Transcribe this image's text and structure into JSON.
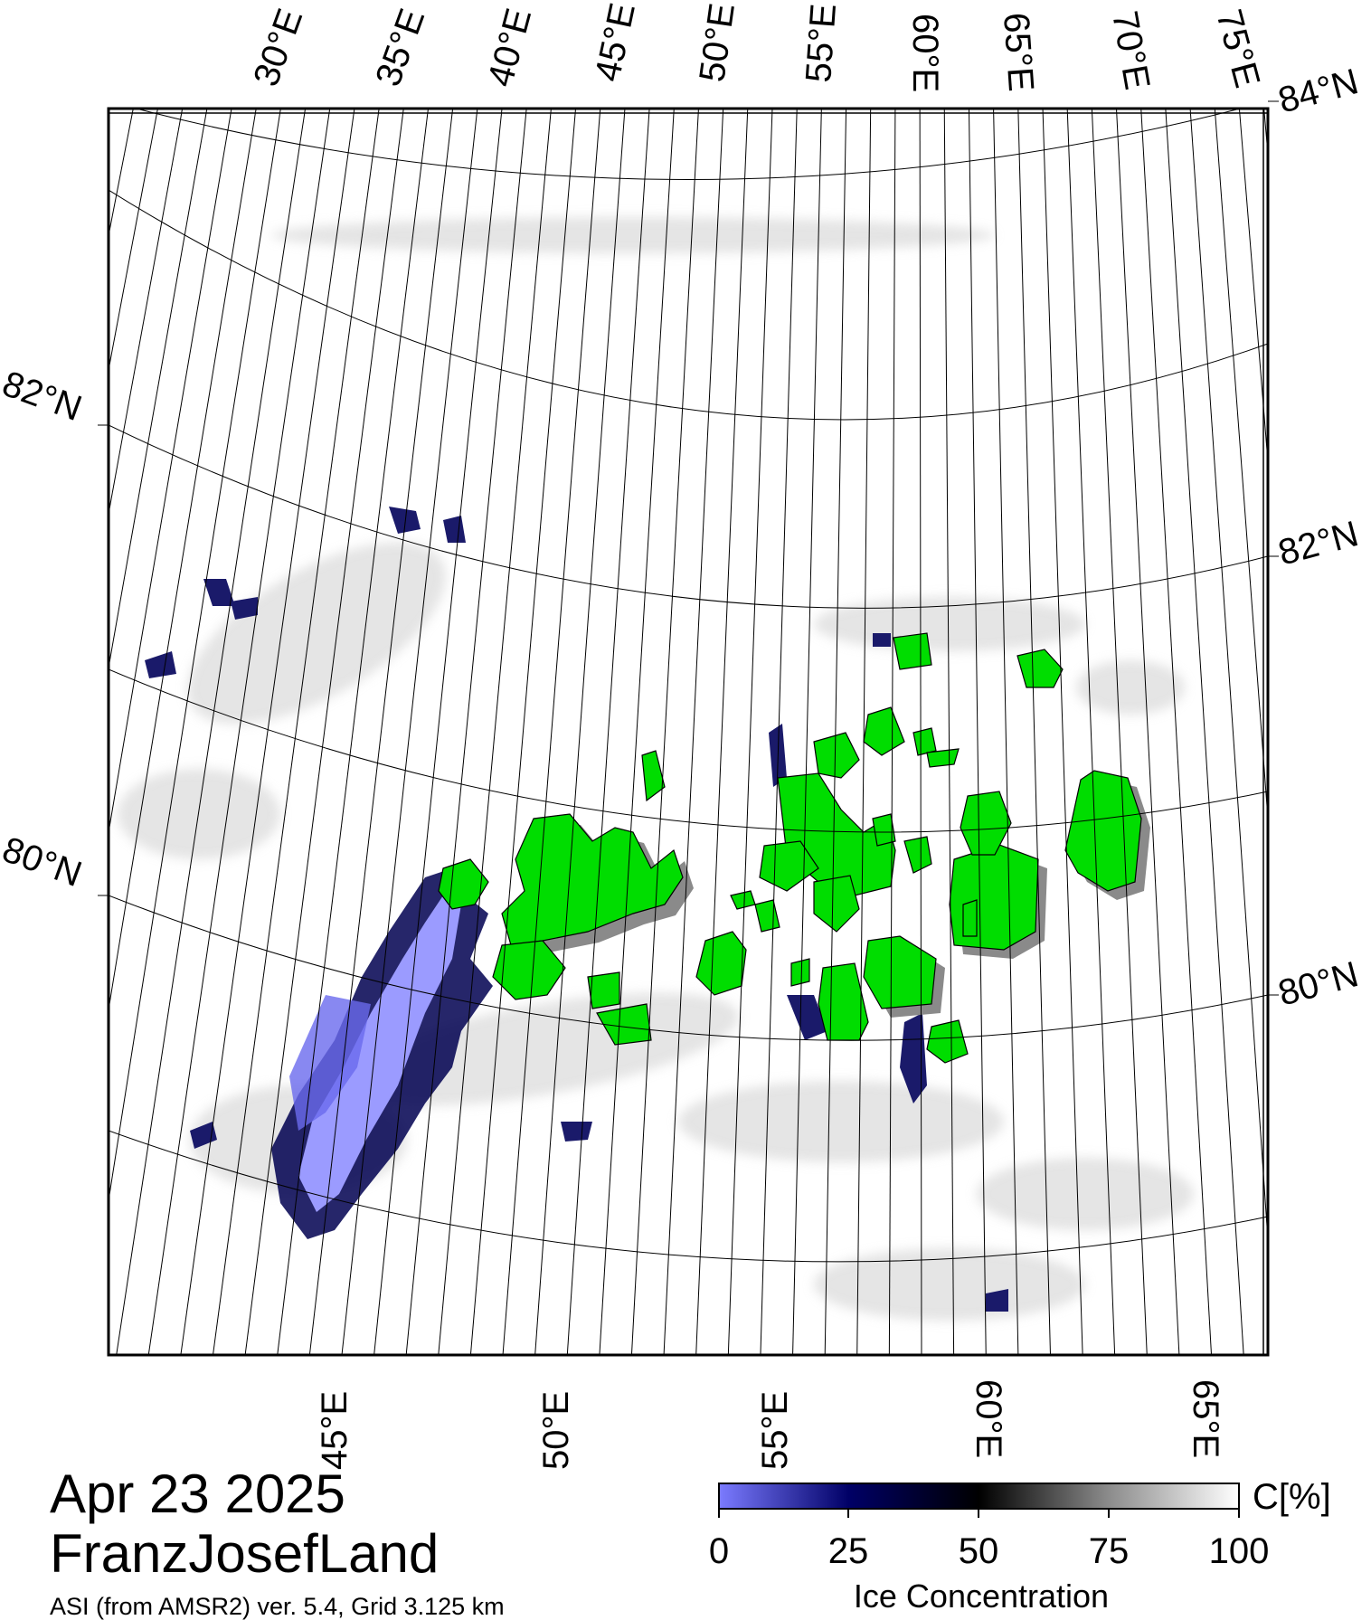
{
  "map": {
    "top_lon_labels": [
      "30°E",
      "35°E",
      "40°E",
      "45°E",
      "50°E",
      "55°E",
      "60°E",
      "65°E",
      "70°E",
      "75°E"
    ],
    "bottom_lon_labels": [
      "45°E",
      "50°E",
      "55°E",
      "60°E",
      "65°E"
    ],
    "left_lat_labels": [
      "82°N",
      "80°N"
    ],
    "right_lat_labels": [
      "84°N",
      "82°N",
      "80°N"
    ],
    "land_color": "#00dd00",
    "land_shadow_color": "#8a8a8a"
  },
  "legend": {
    "unit": "C[%]",
    "ticks": [
      "0",
      "25",
      "50",
      "75",
      "100"
    ],
    "title": "Ice Concentration",
    "color_stops": [
      "#7b7bff",
      "#000066",
      "#000000",
      "#8c8c8c",
      "#ffffff"
    ]
  },
  "footer": {
    "date": "Apr 23 2025",
    "region": "FranzJosefLand",
    "subtitle": "ASI (from AMSR2) ver. 5.4,  Grid 3.125 km"
  }
}
